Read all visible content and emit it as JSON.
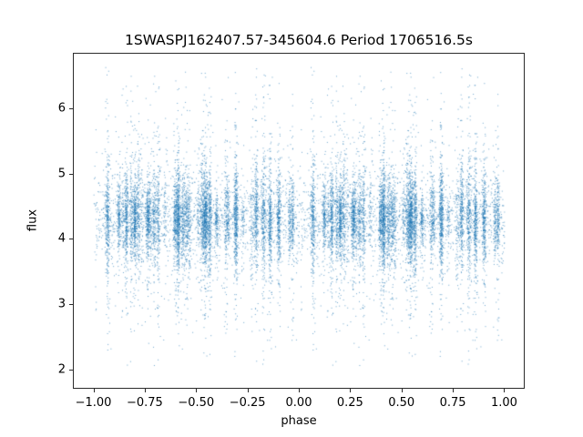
{
  "chart_data": {
    "type": "scatter",
    "title": "1SWASPJ162407.57-345604.6 Period 1706516.5s",
    "xlabel": "phase",
    "ylabel": "flux",
    "xlim": [
      -1.1,
      1.1
    ],
    "ylim": [
      1.7,
      6.85
    ],
    "xticks": [
      -1.0,
      -0.75,
      -0.5,
      -0.25,
      0.0,
      0.25,
      0.5,
      0.75,
      1.0
    ],
    "xtick_labels": [
      "−1.00",
      "−0.75",
      "−0.50",
      "−0.25",
      "0.00",
      "0.25",
      "0.50",
      "0.75",
      "1.00"
    ],
    "yticks": [
      2,
      3,
      4,
      5,
      6
    ],
    "ytick_labels": [
      "2",
      "3",
      "4",
      "5",
      "6"
    ],
    "grid": false,
    "legend": null,
    "marker_color": "#1f77b4",
    "marker_alpha": 0.65,
    "marker_size_px": 1,
    "background_color": "#ffffff",
    "x_data_range": [
      -1.0,
      1.0
    ],
    "flux_data_range": [
      2.05,
      6.65
    ],
    "scatter_model": {
      "description": "Phase-folded photometric light curve; each observation plotted at phase p and p-1, points grouped in narrow vertical nightly clusters around a dense flux band",
      "seed": 1337,
      "n_points": 9000,
      "duplicate_offset": -1,
      "n_clusters": 55,
      "cluster_x_sigma": 0.0045,
      "background_fraction": 0.18,
      "flux_mean": 4.32,
      "core_sigma": 0.3,
      "wide_sigma": 0.78,
      "wide_fraction": 0.24,
      "flux_min": 2.05,
      "flux_max": 6.65
    }
  }
}
